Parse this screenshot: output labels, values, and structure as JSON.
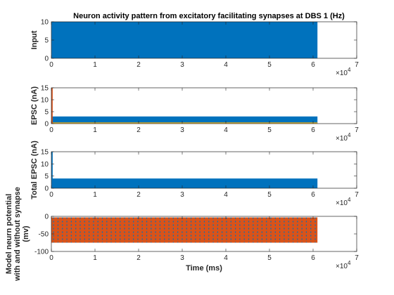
{
  "chart_data": [
    {
      "type": "line",
      "title": "Neuron activity pattern from excitatory facilitating synapses at DBS 1 (Hz)",
      "ylabel": "Input",
      "xlabel": "",
      "xlim": [
        0,
        70000
      ],
      "ylim": [
        0,
        10
      ],
      "x_ticks": [
        0,
        1,
        2,
        3,
        4,
        5,
        6,
        7
      ],
      "x_tick_labels": [
        "0",
        "1",
        "2",
        "3",
        "4",
        "5",
        "6",
        "7"
      ],
      "x_multiplier": "×10",
      "x_multiplier_exp": "4",
      "y_tick_labels": [
        "0",
        "5",
        "10"
      ],
      "y_ticks": [
        0,
        5,
        10
      ],
      "series": [
        {
          "x": [
            0,
            61000
          ],
          "band_min": 0,
          "band_max": 10,
          "color": "#0072bd"
        }
      ]
    },
    {
      "type": "line",
      "title": "",
      "ylabel": "EPSC (nA)",
      "xlabel": "",
      "xlim": [
        0,
        70000
      ],
      "ylim": [
        0,
        15
      ],
      "x_ticks": [
        0,
        1,
        2,
        3,
        4,
        5,
        6,
        7
      ],
      "x_tick_labels": [
        "0",
        "1",
        "2",
        "3",
        "4",
        "5",
        "6",
        "7"
      ],
      "x_multiplier": "×10",
      "x_multiplier_exp": "4",
      "y_tick_labels": [
        "0",
        "5",
        "10",
        "15"
      ],
      "y_ticks": [
        0,
        5,
        10,
        15
      ],
      "series": [
        {
          "x": [
            0,
            61000
          ],
          "band_min": 0,
          "band_max": 3,
          "color": "#0072bd"
        },
        {
          "x": [
            0,
            61000
          ],
          "band_min": 0,
          "band_max": 0.5,
          "color": "#edb120"
        },
        {
          "x": [
            0,
            300
          ],
          "band_min": 0,
          "band_max": 15,
          "color": "#d95319"
        }
      ]
    },
    {
      "type": "line",
      "title": "",
      "ylabel": "Total EPSC (nA)",
      "xlabel": "",
      "xlim": [
        0,
        70000
      ],
      "ylim": [
        0,
        15
      ],
      "x_ticks": [
        0,
        1,
        2,
        3,
        4,
        5,
        6,
        7
      ],
      "x_tick_labels": [
        "0",
        "1",
        "2",
        "3",
        "4",
        "5",
        "6",
        "7"
      ],
      "x_multiplier": "×10",
      "x_multiplier_exp": "4",
      "y_tick_labels": [
        "0",
        "5",
        "10",
        "15"
      ],
      "y_ticks": [
        0,
        5,
        10,
        15
      ],
      "series": [
        {
          "x": [
            0,
            61000
          ],
          "band_min": 0,
          "band_max": 4,
          "color": "#0072bd"
        },
        {
          "x": [
            0,
            300
          ],
          "band_min": 0,
          "band_max": 15,
          "color": "#0072bd"
        }
      ]
    },
    {
      "type": "line",
      "title": "",
      "ylabel_lines": [
        "Model neurn potential",
        "with and without synapse",
        "(mv)"
      ],
      "xlabel": "Time (ms)",
      "xlim": [
        0,
        70000
      ],
      "ylim": [
        -100,
        0
      ],
      "x_ticks": [
        0,
        1,
        2,
        3,
        4,
        5,
        6,
        7
      ],
      "x_tick_labels": [
        "0",
        "1",
        "2",
        "3",
        "4",
        "5",
        "6",
        "7"
      ],
      "x_multiplier": "×10",
      "x_multiplier_exp": "4",
      "y_tick_labels": [
        "-100",
        "-50",
        "0"
      ],
      "y_ticks": [
        -100,
        -50,
        0
      ],
      "series": [
        {
          "x": [
            0,
            61000
          ],
          "band_min": -75,
          "band_max": -3,
          "color": "#d95319"
        },
        {
          "x": [
            0,
            61000
          ],
          "band_min": -75,
          "band_max": -3,
          "color": "#0072bd",
          "style": "dotted"
        }
      ]
    }
  ]
}
